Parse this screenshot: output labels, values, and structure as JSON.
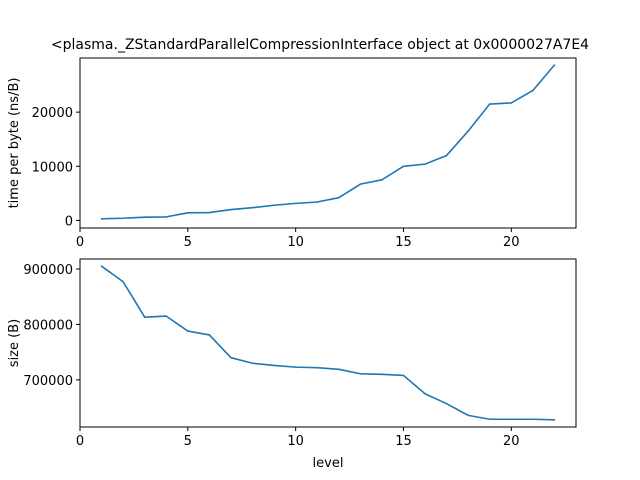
{
  "title": "<plasma._ZStandardParallelCompressionInterface object at 0x0000027A7E4",
  "colors": {
    "line": "#1f77b4",
    "axes": "#000000",
    "background": "#ffffff"
  },
  "chart_data": [
    {
      "type": "line",
      "title": "<plasma._ZStandardParallelCompressionInterface object at 0x0000027A7E4",
      "xlabel": "",
      "ylabel": "time per byte (ns/B)",
      "xlim": [
        0,
        23
      ],
      "ylim": [
        -1400,
        30000
      ],
      "xticks": [
        0,
        5,
        10,
        15,
        20
      ],
      "yticks": [
        0,
        10000,
        20000
      ],
      "grid": false,
      "x": [
        1,
        2,
        3,
        4,
        5,
        6,
        7,
        8,
        9,
        10,
        11,
        12,
        13,
        14,
        15,
        16,
        17,
        18,
        19,
        20,
        21,
        22
      ],
      "series": [
        {
          "values": [
            300,
            400,
            600,
            650,
            1400,
            1450,
            2000,
            2350,
            2800,
            3150,
            3400,
            4200,
            6700,
            7500,
            10000,
            10400,
            12000,
            16500,
            21500,
            21700,
            24000,
            28700
          ]
        }
      ]
    },
    {
      "type": "line",
      "title": "",
      "xlabel": "level",
      "ylabel": "size (B)",
      "xlim": [
        0,
        23
      ],
      "ylim": [
        615000,
        918000
      ],
      "xticks": [
        0,
        5,
        10,
        15,
        20
      ],
      "yticks": [
        700000,
        800000,
        900000
      ],
      "grid": false,
      "x": [
        1,
        2,
        3,
        4,
        5,
        6,
        7,
        8,
        9,
        10,
        11,
        12,
        13,
        14,
        15,
        16,
        17,
        18,
        19,
        20,
        21,
        22
      ],
      "series": [
        {
          "values": [
            905000,
            877000,
            813000,
            815000,
            788000,
            781000,
            740000,
            730000,
            726000,
            723000,
            722000,
            719000,
            711000,
            710000,
            708000,
            675000,
            657000,
            636000,
            629000,
            629000,
            629000,
            628000
          ]
        }
      ]
    }
  ]
}
